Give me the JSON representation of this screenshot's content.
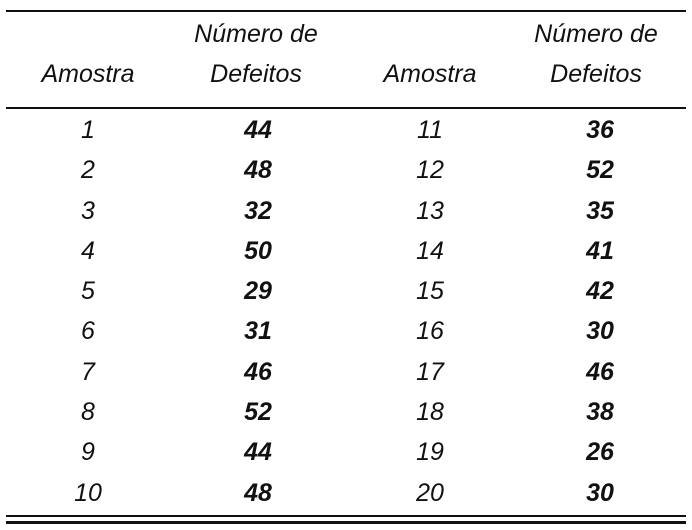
{
  "headers": {
    "amostra_left": "Amostra",
    "defeitos_left_line1": "Número de",
    "defeitos_left_line2": "Defeitos",
    "amostra_right": "Amostra",
    "defeitos_right_line1": "Número de",
    "defeitos_right_line2": "Defeitos"
  },
  "rows_left": [
    {
      "amostra": "1",
      "defeitos": "44"
    },
    {
      "amostra": "2",
      "defeitos": "48"
    },
    {
      "amostra": "3",
      "defeitos": "32"
    },
    {
      "amostra": "4",
      "defeitos": "50"
    },
    {
      "amostra": "5",
      "defeitos": "29"
    },
    {
      "amostra": "6",
      "defeitos": "31"
    },
    {
      "amostra": "7",
      "defeitos": "46"
    },
    {
      "amostra": "8",
      "defeitos": "52"
    },
    {
      "amostra": "9",
      "defeitos": "44"
    },
    {
      "amostra": "10",
      "defeitos": "48"
    }
  ],
  "rows_right": [
    {
      "amostra": "11",
      "defeitos": "36"
    },
    {
      "amostra": "12",
      "defeitos": "52"
    },
    {
      "amostra": "13",
      "defeitos": "35"
    },
    {
      "amostra": "14",
      "defeitos": "41"
    },
    {
      "amostra": "15",
      "defeitos": "42"
    },
    {
      "amostra": "16",
      "defeitos": "30"
    },
    {
      "amostra": "17",
      "defeitos": "46"
    },
    {
      "amostra": "18",
      "defeitos": "38"
    },
    {
      "amostra": "19",
      "defeitos": "26"
    },
    {
      "amostra": "20",
      "defeitos": "30"
    }
  ]
}
